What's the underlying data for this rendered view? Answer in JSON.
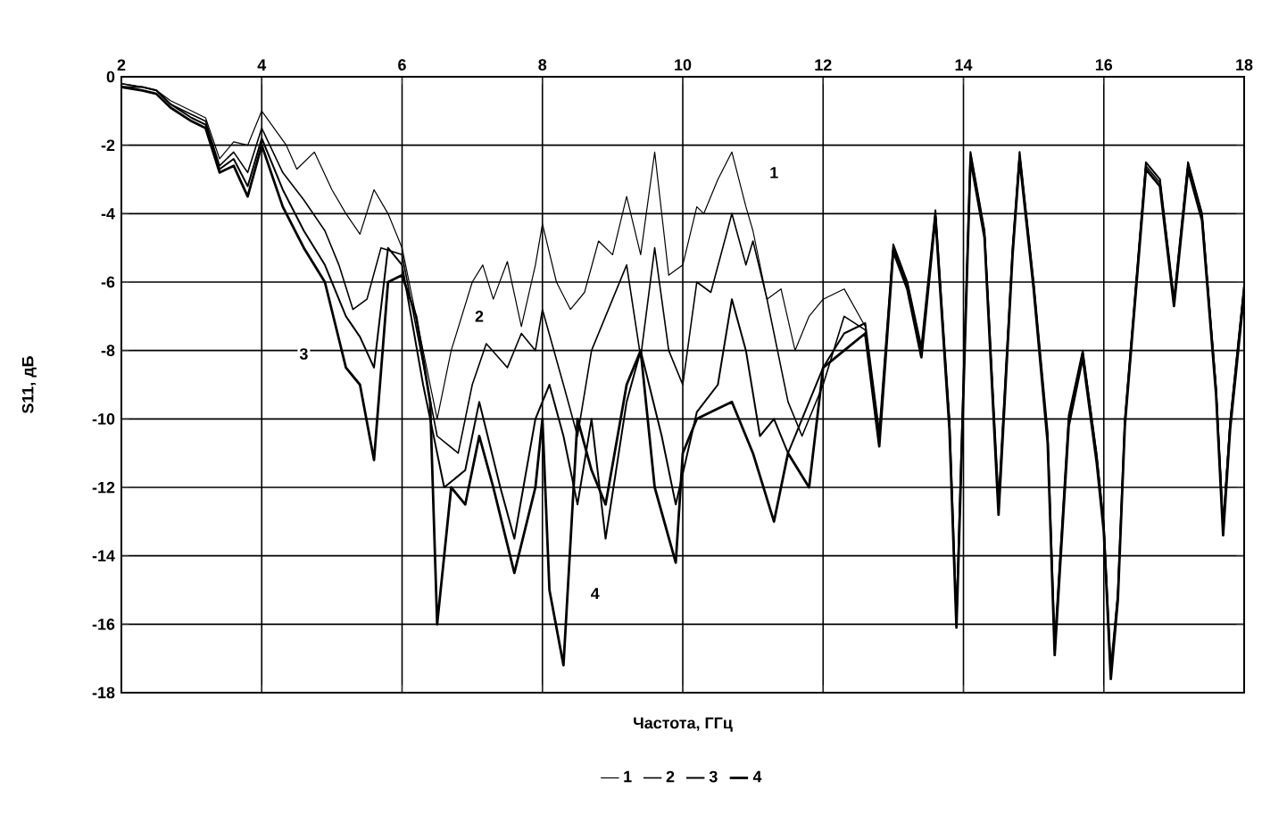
{
  "chart_data": {
    "type": "line",
    "xlabel": "Частота, ГГц",
    "ylabel": "S11, дБ",
    "xlim": [
      2,
      18
    ],
    "ylim": [
      -18,
      0
    ],
    "xticks": [
      2,
      4,
      6,
      8,
      10,
      12,
      14,
      16,
      18
    ],
    "yticks": [
      -18,
      -16,
      -14,
      -12,
      -10,
      -8,
      -6,
      -4,
      -2,
      0
    ],
    "grid": true,
    "legend": "bottom",
    "series": [
      {
        "name": "1",
        "color": "#000000",
        "x": [
          2.0,
          2.3,
          2.5,
          2.7,
          3.0,
          3.2,
          3.4,
          3.6,
          3.8,
          4.0,
          4.35,
          4.5,
          4.75,
          5.0,
          5.2,
          5.4,
          5.6,
          5.8,
          6.0,
          6.2,
          6.5,
          6.7,
          7.0,
          7.15,
          7.3,
          7.5,
          7.7,
          7.9,
          8.0,
          8.2,
          8.4,
          8.6,
          8.8,
          9.0,
          9.2,
          9.4,
          9.6,
          9.8,
          10.0,
          10.2,
          10.3,
          10.5,
          10.7,
          10.9,
          11.0,
          11.2,
          11.4,
          11.6,
          11.8,
          12.0,
          12.3,
          12.6,
          12.8,
          13.0,
          13.2,
          13.4,
          13.6,
          13.8,
          13.9,
          14.0,
          14.1,
          14.3,
          14.5,
          14.7,
          14.8,
          15.0,
          15.2,
          15.3,
          15.5,
          15.7,
          15.9,
          16.0,
          16.1,
          16.2,
          16.3,
          16.5,
          16.6,
          16.8,
          17.0,
          17.2,
          17.4,
          17.6,
          17.7,
          17.8,
          18.0
        ],
        "values": [
          -0.2,
          -0.3,
          -0.4,
          -0.7,
          -1.0,
          -1.2,
          -2.4,
          -1.9,
          -2.0,
          -1.0,
          -2.0,
          -2.7,
          -2.2,
          -3.3,
          -4.0,
          -4.6,
          -3.3,
          -4.0,
          -5.0,
          -7.0,
          -10.0,
          -8.0,
          -6.0,
          -5.5,
          -6.5,
          -5.4,
          -7.3,
          -5.5,
          -4.3,
          -6.0,
          -6.8,
          -6.3,
          -4.8,
          -5.2,
          -3.5,
          -5.2,
          -2.2,
          -5.8,
          -5.5,
          -3.8,
          -4.0,
          -3.0,
          -2.2,
          -3.8,
          -4.5,
          -6.5,
          -6.2,
          -8.0,
          -7.0,
          -6.5,
          -6.2,
          -7.3,
          -10.5,
          -5.0,
          -6.0,
          -8.0,
          -4.0,
          -10.0,
          -16.0,
          -9.0,
          -2.2,
          -4.5,
          -12.5,
          -5.0,
          -2.2,
          -6.0,
          -10.5,
          -16.8,
          -10.0,
          -8.0,
          -11.0,
          -13.0,
          -17.5,
          -15.0,
          -10.0,
          -5.0,
          -2.5,
          -3.0,
          -6.5,
          -2.5,
          -4.0,
          -9.0,
          -13.0,
          -10.0,
          -6.0
        ]
      },
      {
        "name": "2",
        "color": "#000000",
        "x": [
          2.0,
          2.3,
          2.5,
          2.7,
          3.0,
          3.2,
          3.4,
          3.6,
          3.8,
          4.0,
          4.3,
          4.6,
          4.9,
          5.1,
          5.3,
          5.5,
          5.7,
          6.0,
          6.5,
          6.8,
          7.0,
          7.2,
          7.5,
          7.7,
          7.9,
          8.0,
          8.3,
          8.5,
          8.7,
          8.9,
          9.2,
          9.4,
          9.6,
          9.8,
          10.0,
          10.2,
          10.4,
          10.7,
          10.9,
          11.0,
          11.2,
          11.5,
          11.7,
          12.0,
          12.3,
          12.6,
          12.8,
          13.0,
          13.2,
          13.4,
          13.6,
          13.8,
          13.9,
          14.0,
          14.1,
          14.3,
          14.5,
          14.7,
          14.8,
          15.0,
          15.2,
          15.3,
          15.5,
          15.7,
          15.9,
          16.0,
          16.1,
          16.2,
          16.3,
          16.5,
          16.6,
          16.8,
          17.0,
          17.2,
          17.4,
          17.6,
          17.7,
          17.8,
          18.0
        ],
        "values": [
          -0.2,
          -0.3,
          -0.4,
          -0.8,
          -1.1,
          -1.3,
          -2.6,
          -2.2,
          -2.8,
          -1.5,
          -2.8,
          -3.6,
          -4.5,
          -5.5,
          -6.8,
          -6.5,
          -5.0,
          -5.2,
          -10.5,
          -11.0,
          -9.0,
          -7.8,
          -8.5,
          -7.5,
          -8.0,
          -6.8,
          -9.0,
          -10.5,
          -8.0,
          -7.0,
          -5.5,
          -8.2,
          -5.0,
          -8.0,
          -9.0,
          -6.0,
          -6.3,
          -4.0,
          -5.5,
          -4.8,
          -6.5,
          -9.5,
          -10.5,
          -9.0,
          -7.0,
          -7.4,
          -10.6,
          -5.0,
          -6.1,
          -8.1,
          -4.0,
          -10.2,
          -16.0,
          -9.1,
          -2.3,
          -4.6,
          -12.6,
          -5.1,
          -2.3,
          -6.1,
          -10.6,
          -16.7,
          -10.1,
          -8.1,
          -11.2,
          -13.2,
          -17.4,
          -15.2,
          -10.1,
          -5.1,
          -2.6,
          -3.1,
          -6.6,
          -2.6,
          -4.1,
          -9.2,
          -13.2,
          -10.2,
          -6.2
        ]
      },
      {
        "name": "3",
        "color": "#000000",
        "x": [
          2.0,
          2.3,
          2.5,
          2.7,
          3.0,
          3.2,
          3.4,
          3.6,
          3.8,
          4.0,
          4.3,
          4.6,
          4.9,
          5.2,
          5.4,
          5.6,
          5.8,
          6.0,
          6.3,
          6.6,
          6.9,
          7.1,
          7.4,
          7.6,
          7.9,
          8.1,
          8.3,
          8.5,
          8.7,
          8.9,
          9.2,
          9.4,
          9.7,
          9.9,
          10.2,
          10.5,
          10.7,
          10.9,
          11.1,
          11.3,
          11.5,
          11.7,
          12.0,
          12.3,
          12.6,
          12.8,
          13.0,
          13.2,
          13.4,
          13.6,
          13.8,
          13.9,
          14.0,
          14.1,
          14.3,
          14.5,
          14.7,
          14.8,
          15.0,
          15.2,
          15.3,
          15.5,
          15.7,
          15.9,
          16.0,
          16.1,
          16.2,
          16.3,
          16.5,
          16.6,
          16.8,
          17.0,
          17.2,
          17.4,
          17.6,
          17.7,
          17.8,
          18.0
        ],
        "values": [
          -0.3,
          -0.3,
          -0.4,
          -0.8,
          -1.2,
          -1.4,
          -2.7,
          -2.4,
          -3.2,
          -1.8,
          -3.3,
          -4.5,
          -5.5,
          -7.0,
          -7.6,
          -8.5,
          -5.0,
          -5.5,
          -9.0,
          -12.0,
          -11.5,
          -9.5,
          -12.0,
          -13.5,
          -10.0,
          -9.0,
          -10.5,
          -12.5,
          -10.0,
          -13.5,
          -9.5,
          -8.0,
          -10.5,
          -12.5,
          -9.8,
          -9.0,
          -6.5,
          -8.0,
          -10.5,
          -10.0,
          -11.0,
          -10.0,
          -8.5,
          -7.5,
          -7.2,
          -10.4,
          -4.9,
          -6.0,
          -7.9,
          -3.9,
          -10.0,
          -15.8,
          -8.9,
          -2.2,
          -4.5,
          -12.4,
          -5.0,
          -2.2,
          -6.0,
          -10.4,
          -16.6,
          -9.9,
          -8.0,
          -11.1,
          -13.1,
          -17.3,
          -15.1,
          -10.0,
          -5.0,
          -2.5,
          -3.0,
          -6.5,
          -2.5,
          -4.0,
          -9.1,
          -13.1,
          -10.1,
          -6.1
        ]
      },
      {
        "name": "4",
        "color": "#000000",
        "x": [
          2.0,
          2.3,
          2.5,
          2.7,
          3.0,
          3.2,
          3.4,
          3.6,
          3.8,
          4.0,
          4.3,
          4.6,
          4.9,
          5.2,
          5.4,
          5.6,
          5.8,
          6.0,
          6.2,
          6.4,
          6.5,
          6.7,
          6.9,
          7.1,
          7.3,
          7.6,
          7.9,
          8.0,
          8.1,
          8.3,
          8.5,
          8.7,
          8.9,
          9.2,
          9.4,
          9.6,
          9.9,
          10.0,
          10.2,
          10.5,
          10.7,
          11.0,
          11.3,
          11.5,
          11.8,
          12.0,
          12.3,
          12.6,
          12.8,
          13.0,
          13.2,
          13.4,
          13.6,
          13.8,
          13.9,
          14.0,
          14.1,
          14.3,
          14.5,
          14.7,
          14.8,
          15.0,
          15.2,
          15.3,
          15.5,
          15.7,
          15.9,
          16.0,
          16.1,
          16.2,
          16.3,
          16.5,
          16.6,
          16.8,
          17.0,
          17.2,
          17.4,
          17.6,
          17.7,
          17.8,
          18.0
        ],
        "values": [
          -0.3,
          -0.4,
          -0.5,
          -0.9,
          -1.3,
          -1.5,
          -2.8,
          -2.6,
          -3.5,
          -2.0,
          -3.8,
          -5.0,
          -6.0,
          -8.5,
          -9.0,
          -11.2,
          -6.0,
          -5.8,
          -7.0,
          -9.5,
          -16.0,
          -12.0,
          -12.5,
          -10.5,
          -12.0,
          -14.5,
          -12.0,
          -10.0,
          -15.0,
          -17.2,
          -10.0,
          -11.5,
          -12.5,
          -9.0,
          -8.0,
          -12.0,
          -14.2,
          -11.0,
          -10.0,
          -9.7,
          -9.5,
          -11.0,
          -13.0,
          -11.0,
          -12.0,
          -8.5,
          -8.0,
          -7.5,
          -10.8,
          -5.1,
          -6.2,
          -8.2,
          -4.1,
          -10.3,
          -16.1,
          -9.2,
          -2.4,
          -4.7,
          -12.8,
          -5.2,
          -2.4,
          -6.2,
          -10.7,
          -16.9,
          -10.2,
          -8.2,
          -11.3,
          -13.3,
          -17.6,
          -15.3,
          -10.2,
          -5.2,
          -2.7,
          -3.2,
          -6.7,
          -2.7,
          -4.2,
          -9.3,
          -13.4,
          -10.3,
          -6.3
        ]
      }
    ],
    "annotations": [
      {
        "text": "1",
        "x": 11.3,
        "y": -2.8
      },
      {
        "text": "2",
        "x": 7.1,
        "y": -7.0
      },
      {
        "text": "3",
        "x": 4.6,
        "y": -8.1
      },
      {
        "text": "4",
        "x": 8.75,
        "y": -15.1
      }
    ]
  }
}
